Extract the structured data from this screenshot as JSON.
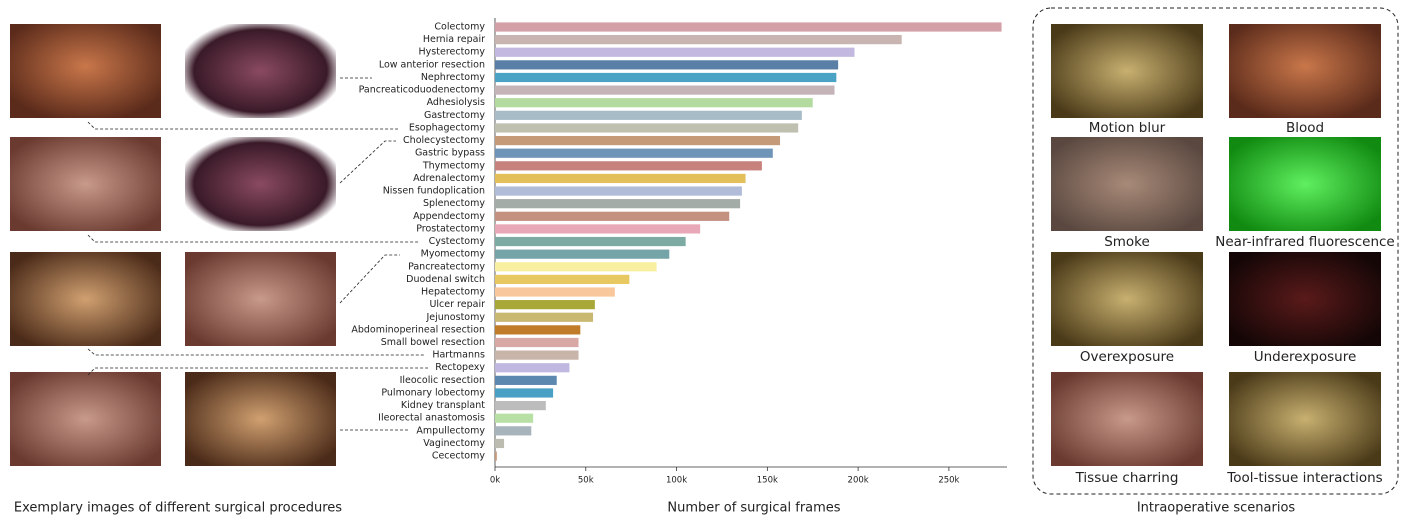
{
  "chart_data": {
    "type": "barh",
    "xlabel": "Number of surgical frames",
    "categories": [
      "Colectomy",
      "Hernia repair",
      "Hysterectomy",
      "Low anterior resection",
      "Nephrectomy",
      "Pancreaticoduodenectomy",
      "Adhesiolysis",
      "Gastrectomy",
      "Esophagectomy",
      "Cholecystectomy",
      "Gastric bypass",
      "Thymectomy",
      "Adrenalectomy",
      "Nissen fundoplication",
      "Splenectomy",
      "Appendectomy",
      "Prostatectomy",
      "Cystectomy",
      "Myomectomy",
      "Pancreatectomy",
      "Duodenal switch",
      "Hepatectomy",
      "Ulcer repair",
      "Jejunostomy",
      "Abdominoperineal resection",
      "Small bowel resection",
      "Hartmanns",
      "Rectopexy",
      "Ileocolic resection",
      "Pulmonary lobectomy",
      "Kidney transplant",
      "Ileorectal anastomosis",
      "Ampullectomy",
      "Vaginectomy",
      "Cecectomy"
    ],
    "values": [
      279000,
      224000,
      198000,
      189000,
      188000,
      187000,
      175000,
      169000,
      167000,
      157000,
      153000,
      147000,
      138000,
      136000,
      135000,
      129000,
      113000,
      105000,
      96000,
      89000,
      74000,
      66000,
      55000,
      54000,
      47000,
      46000,
      46000,
      41000,
      34000,
      32000,
      28000,
      21000,
      20000,
      5000,
      1000
    ],
    "colors": [
      "#d4a0a8",
      "#c8b4b0",
      "#c2b8e0",
      "#5a7fa6",
      "#4aa3c4",
      "#c4b4b8",
      "#b3dba0",
      "#a8bcc8",
      "#c0c0b0",
      "#c49a78",
      "#6e94b8",
      "#c8827e",
      "#e3bf5a",
      "#b0bcd8",
      "#a4aca8",
      "#c49080",
      "#e8a8b8",
      "#7eaaa4",
      "#74a4a8",
      "#f8f0a0",
      "#e8c860",
      "#f8c89c",
      "#a8a838",
      "#c8b870",
      "#c07c28",
      "#d8a8a4",
      "#c8b4a8",
      "#c0b8e0",
      "#5c88b0",
      "#4aa0c4",
      "#bcbcbc",
      "#b8e0a4",
      "#a8b4bc",
      "#bcbcb0",
      "#c89878"
    ],
    "xlim": [
      0,
      282000
    ],
    "xticks": [
      {
        "value": 0,
        "label": "0k"
      },
      {
        "value": 50000,
        "label": "50k"
      },
      {
        "value": 100000,
        "label": "100k"
      },
      {
        "value": 150000,
        "label": "150k"
      },
      {
        "value": 200000,
        "label": "200k"
      },
      {
        "value": 250000,
        "label": "250k"
      }
    ]
  },
  "left_panel": {
    "caption": "Exemplary images of different surgical procedures"
  },
  "right_panel": {
    "caption": "Intraoperative scenarios",
    "scenarios": [
      "Motion blur",
      "Blood",
      "Smoke",
      "Near-infrared fluorescence",
      "Overexposure",
      "Underexposure",
      "Tissue charring",
      "Tool-tissue interactions"
    ]
  }
}
